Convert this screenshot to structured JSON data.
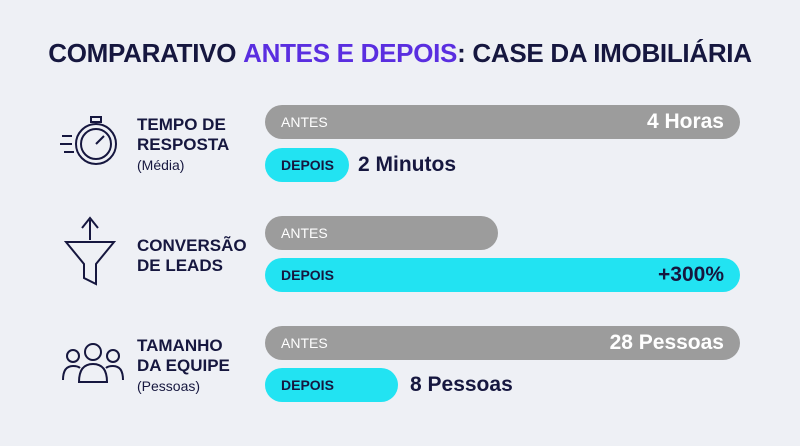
{
  "title": {
    "before": "COMPARATIVO",
    "highlight": "ANTES E DEPOIS",
    "after": ": CASE DA IMOBILIÁRIA"
  },
  "rows": [
    {
      "label_lines": [
        "TEMPO DE",
        "RESPOSTA"
      ],
      "note": "(Média)",
      "before": {
        "tag": "ANTES",
        "value": "4 Horas"
      },
      "after": {
        "tag": "DEPOIS",
        "value": "2 Minutos"
      }
    },
    {
      "label_lines": [
        "CONVERSÃO",
        "DE LEADS"
      ],
      "before": {
        "tag": "ANTES"
      },
      "after": {
        "tag": "DEPOIS",
        "value": "+300%"
      }
    },
    {
      "label_lines": [
        "TAMANHO",
        "DA EQUIPE"
      ],
      "note": "(Pessoas)",
      "before": {
        "tag": "ANTES",
        "value": "28 Pessoas"
      },
      "after": {
        "tag": "DEPOIS",
        "value": "8 Pessoas"
      }
    }
  ]
}
